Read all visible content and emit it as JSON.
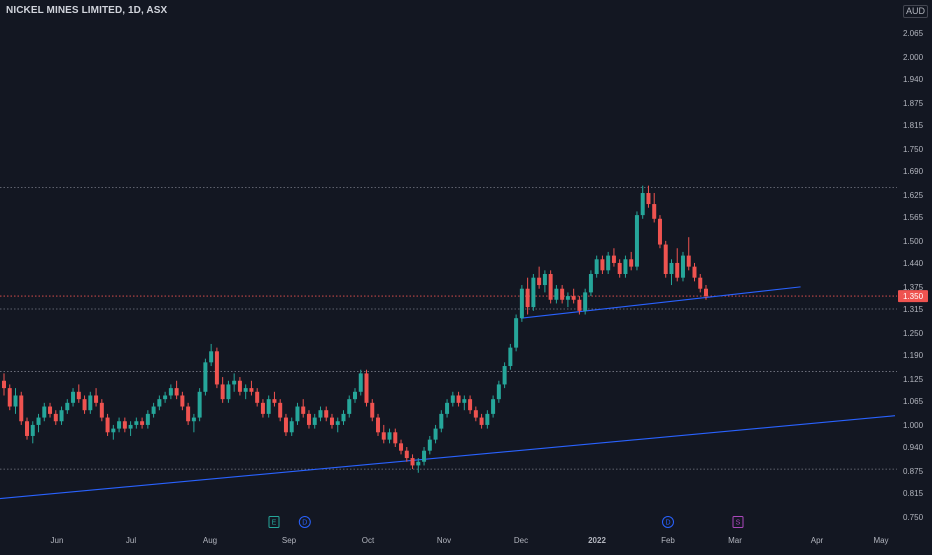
{
  "header": {
    "symbol_title": "NICKEL MINES LIMITED, 1D, ASX",
    "currency": "AUD"
  },
  "colors": {
    "background": "#131722",
    "up": "#26a69a",
    "down": "#ef5350",
    "trendline": "#2962ff",
    "level_line": "#787b86",
    "current_price_line": "#ef5350",
    "axis_text": "#b2b5be"
  },
  "events": [
    {
      "label": "E",
      "type": "earnings",
      "month_index": 3,
      "offset": 0.0
    },
    {
      "label": "D",
      "type": "dividend",
      "month_index": 3,
      "offset": 0.2
    },
    {
      "label": "D",
      "type": "dividend",
      "month_index": 8,
      "offset": 0.0
    },
    {
      "label": "S",
      "type": "split",
      "month_index": 9,
      "offset": 0.0
    }
  ],
  "chart_data": {
    "type": "candlestick",
    "symbol": "NICKEL MINES LIMITED",
    "interval": "1D",
    "exchange": "ASX",
    "currency": "AUD",
    "y_axis": {
      "ticks": [
        "2.065",
        "2.000",
        "1.940",
        "1.875",
        "1.815",
        "1.750",
        "1.690",
        "1.625",
        "1.565",
        "1.500",
        "1.440",
        "1.375",
        "1.315",
        "1.250",
        "1.190",
        "1.125",
        "1.065",
        "1.000",
        "0.940",
        "0.875",
        "0.815",
        "0.750"
      ],
      "ylim": [
        0.72,
        2.1
      ]
    },
    "x_axis": {
      "ticks": [
        "Jun",
        "Jul",
        "Aug",
        "Sep",
        "Oct",
        "Nov",
        "Dec",
        "2022",
        "Feb",
        "Mar",
        "Apr",
        "May"
      ]
    },
    "current_price": 1.35,
    "current_price_label": "1.350",
    "horizontal_levels": [
      1.645,
      1.315,
      1.145,
      0.88
    ],
    "trendlines": [
      {
        "start": {
          "x": 0,
          "y": 0.8
        },
        "end": {
          "x": 11.2,
          "y": 1.025
        }
      },
      {
        "start": {
          "x": 6.0,
          "y": 1.29
        },
        "end": {
          "x": 9.8,
          "y": 1.375
        }
      }
    ],
    "candles": [
      [
        1.12,
        1.14,
        1.08,
        1.1
      ],
      [
        1.1,
        1.11,
        1.04,
        1.05
      ],
      [
        1.05,
        1.1,
        1.03,
        1.08
      ],
      [
        1.08,
        1.09,
        1.0,
        1.01
      ],
      [
        1.01,
        1.02,
        0.96,
        0.97
      ],
      [
        0.97,
        1.01,
        0.95,
        1.0
      ],
      [
        1.0,
        1.03,
        0.98,
        1.02
      ],
      [
        1.02,
        1.06,
        1.01,
        1.05
      ],
      [
        1.05,
        1.06,
        1.02,
        1.03
      ],
      [
        1.03,
        1.04,
        1.0,
        1.01
      ],
      [
        1.01,
        1.05,
        1.0,
        1.04
      ],
      [
        1.04,
        1.07,
        1.03,
        1.06
      ],
      [
        1.06,
        1.1,
        1.05,
        1.09
      ],
      [
        1.09,
        1.11,
        1.06,
        1.07
      ],
      [
        1.07,
        1.08,
        1.03,
        1.04
      ],
      [
        1.04,
        1.09,
        1.03,
        1.08
      ],
      [
        1.08,
        1.1,
        1.05,
        1.06
      ],
      [
        1.06,
        1.07,
        1.01,
        1.02
      ],
      [
        1.02,
        1.03,
        0.97,
        0.98
      ],
      [
        0.98,
        1.0,
        0.96,
        0.99
      ],
      [
        0.99,
        1.02,
        0.98,
        1.01
      ],
      [
        1.01,
        1.02,
        0.98,
        0.99
      ],
      [
        0.99,
        1.01,
        0.97,
        1.0
      ],
      [
        1.0,
        1.02,
        0.99,
        1.01
      ],
      [
        1.01,
        1.02,
        0.99,
        1.0
      ],
      [
        1.0,
        1.04,
        0.99,
        1.03
      ],
      [
        1.03,
        1.06,
        1.02,
        1.05
      ],
      [
        1.05,
        1.08,
        1.04,
        1.07
      ],
      [
        1.07,
        1.09,
        1.06,
        1.08
      ],
      [
        1.08,
        1.11,
        1.07,
        1.1
      ],
      [
        1.1,
        1.12,
        1.07,
        1.08
      ],
      [
        1.08,
        1.09,
        1.04,
        1.05
      ],
      [
        1.05,
        1.06,
        1.0,
        1.01
      ],
      [
        1.01,
        1.03,
        0.98,
        1.02
      ],
      [
        1.02,
        1.1,
        1.01,
        1.09
      ],
      [
        1.09,
        1.18,
        1.08,
        1.17
      ],
      [
        1.17,
        1.22,
        1.16,
        1.2
      ],
      [
        1.2,
        1.21,
        1.1,
        1.11
      ],
      [
        1.11,
        1.13,
        1.06,
        1.07
      ],
      [
        1.07,
        1.12,
        1.06,
        1.11
      ],
      [
        1.11,
        1.14,
        1.09,
        1.12
      ],
      [
        1.12,
        1.13,
        1.08,
        1.09
      ],
      [
        1.09,
        1.11,
        1.07,
        1.1
      ],
      [
        1.1,
        1.12,
        1.08,
        1.09
      ],
      [
        1.09,
        1.1,
        1.05,
        1.06
      ],
      [
        1.06,
        1.07,
        1.02,
        1.03
      ],
      [
        1.03,
        1.08,
        1.02,
        1.07
      ],
      [
        1.07,
        1.09,
        1.05,
        1.06
      ],
      [
        1.06,
        1.07,
        1.01,
        1.02
      ],
      [
        1.02,
        1.03,
        0.97,
        0.98
      ],
      [
        0.98,
        1.02,
        0.97,
        1.01
      ],
      [
        1.01,
        1.06,
        1.0,
        1.05
      ],
      [
        1.05,
        1.07,
        1.02,
        1.03
      ],
      [
        1.03,
        1.04,
        0.99,
        1.0
      ],
      [
        1.0,
        1.03,
        0.99,
        1.02
      ],
      [
        1.02,
        1.05,
        1.01,
        1.04
      ],
      [
        1.04,
        1.05,
        1.01,
        1.02
      ],
      [
        1.02,
        1.03,
        0.99,
        1.0
      ],
      [
        1.0,
        1.02,
        0.98,
        1.01
      ],
      [
        1.01,
        1.04,
        1.0,
        1.03
      ],
      [
        1.03,
        1.08,
        1.02,
        1.07
      ],
      [
        1.07,
        1.1,
        1.06,
        1.09
      ],
      [
        1.09,
        1.15,
        1.08,
        1.14
      ],
      [
        1.14,
        1.15,
        1.05,
        1.06
      ],
      [
        1.06,
        1.07,
        1.01,
        1.02
      ],
      [
        1.02,
        1.03,
        0.97,
        0.98
      ],
      [
        0.98,
        1.0,
        0.95,
        0.96
      ],
      [
        0.96,
        0.99,
        0.95,
        0.98
      ],
      [
        0.98,
        0.99,
        0.94,
        0.95
      ],
      [
        0.95,
        0.96,
        0.92,
        0.93
      ],
      [
        0.93,
        0.94,
        0.9,
        0.91
      ],
      [
        0.91,
        0.92,
        0.88,
        0.89
      ],
      [
        0.89,
        0.91,
        0.87,
        0.9
      ],
      [
        0.9,
        0.94,
        0.89,
        0.93
      ],
      [
        0.93,
        0.97,
        0.92,
        0.96
      ],
      [
        0.96,
        1.0,
        0.95,
        0.99
      ],
      [
        0.99,
        1.04,
        0.98,
        1.03
      ],
      [
        1.03,
        1.07,
        1.02,
        1.06
      ],
      [
        1.06,
        1.09,
        1.05,
        1.08
      ],
      [
        1.08,
        1.09,
        1.05,
        1.06
      ],
      [
        1.06,
        1.08,
        1.04,
        1.07
      ],
      [
        1.07,
        1.08,
        1.03,
        1.04
      ],
      [
        1.04,
        1.05,
        1.01,
        1.02
      ],
      [
        1.02,
        1.03,
        0.99,
        1.0
      ],
      [
        1.0,
        1.04,
        0.99,
        1.03
      ],
      [
        1.03,
        1.08,
        1.02,
        1.07
      ],
      [
        1.07,
        1.12,
        1.06,
        1.11
      ],
      [
        1.11,
        1.17,
        1.1,
        1.16
      ],
      [
        1.16,
        1.22,
        1.15,
        1.21
      ],
      [
        1.21,
        1.3,
        1.2,
        1.29
      ],
      [
        1.29,
        1.38,
        1.28,
        1.37
      ],
      [
        1.37,
        1.4,
        1.3,
        1.32
      ],
      [
        1.32,
        1.41,
        1.31,
        1.4
      ],
      [
        1.4,
        1.43,
        1.37,
        1.38
      ],
      [
        1.38,
        1.42,
        1.36,
        1.41
      ],
      [
        1.41,
        1.42,
        1.33,
        1.34
      ],
      [
        1.34,
        1.38,
        1.33,
        1.37
      ],
      [
        1.37,
        1.38,
        1.33,
        1.34
      ],
      [
        1.34,
        1.36,
        1.32,
        1.35
      ],
      [
        1.35,
        1.37,
        1.33,
        1.34
      ],
      [
        1.34,
        1.35,
        1.3,
        1.31
      ],
      [
        1.31,
        1.37,
        1.3,
        1.36
      ],
      [
        1.36,
        1.42,
        1.35,
        1.41
      ],
      [
        1.41,
        1.46,
        1.4,
        1.45
      ],
      [
        1.45,
        1.46,
        1.41,
        1.42
      ],
      [
        1.42,
        1.47,
        1.41,
        1.46
      ],
      [
        1.46,
        1.48,
        1.43,
        1.44
      ],
      [
        1.44,
        1.45,
        1.4,
        1.41
      ],
      [
        1.41,
        1.46,
        1.4,
        1.45
      ],
      [
        1.45,
        1.47,
        1.42,
        1.43
      ],
      [
        1.43,
        1.58,
        1.42,
        1.57
      ],
      [
        1.57,
        1.65,
        1.56,
        1.63
      ],
      [
        1.63,
        1.65,
        1.59,
        1.6
      ],
      [
        1.6,
        1.63,
        1.55,
        1.56
      ],
      [
        1.56,
        1.57,
        1.48,
        1.49
      ],
      [
        1.49,
        1.5,
        1.4,
        1.41
      ],
      [
        1.41,
        1.45,
        1.38,
        1.44
      ],
      [
        1.44,
        1.48,
        1.39,
        1.4
      ],
      [
        1.4,
        1.47,
        1.39,
        1.46
      ],
      [
        1.46,
        1.51,
        1.42,
        1.43
      ],
      [
        1.43,
        1.44,
        1.39,
        1.4
      ],
      [
        1.4,
        1.41,
        1.36,
        1.37
      ],
      [
        1.37,
        1.38,
        1.34,
        1.35
      ]
    ]
  }
}
